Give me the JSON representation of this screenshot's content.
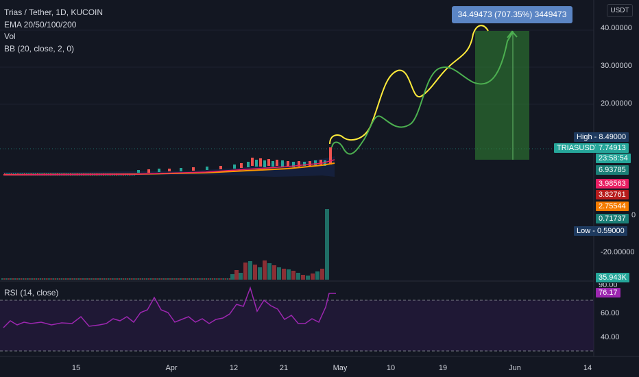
{
  "legend": {
    "title": "Trias / Tether, 1D, KUCOIN",
    "ema": "EMA 20/50/100/200",
    "vol": "Vol",
    "bb": "BB (20, close, 2, 0)"
  },
  "rsi_legend": "RSI (14, close)",
  "currency": "USDT",
  "tooltip": "34.49473 (707.35%) 3449473",
  "y_axis": [
    "40.00000",
    "30.00000",
    "20.00000",
    "-20.00000",
    "60.00",
    "40.00"
  ],
  "x_axis": [
    "15",
    "Apr",
    "12",
    "21",
    "May",
    "10",
    "19",
    "Jun",
    "14"
  ],
  "badges": {
    "high": "High - 8.49000",
    "symbol": "TRIASUSDT",
    "price": "7.74913",
    "countdown": "23:58:54",
    "ema1": "6.93785",
    "ema2": "3.98563",
    "ema3": "3.82761",
    "ema4": "2.75544",
    "ema5": "0.71737",
    "low": "Low - 0.59000",
    "vol": "35.943K",
    "rsi_partial": "90.00",
    "rsi": "76.17",
    "zero": "0"
  },
  "colors": {
    "background": "#131722",
    "up": "#26a69a",
    "down": "#ef5350",
    "target_zone": "#2e7d32",
    "rsi_line": "#9c27b0",
    "yellow_path": "#ffeb3b",
    "green_path": "#4caf50"
  }
}
